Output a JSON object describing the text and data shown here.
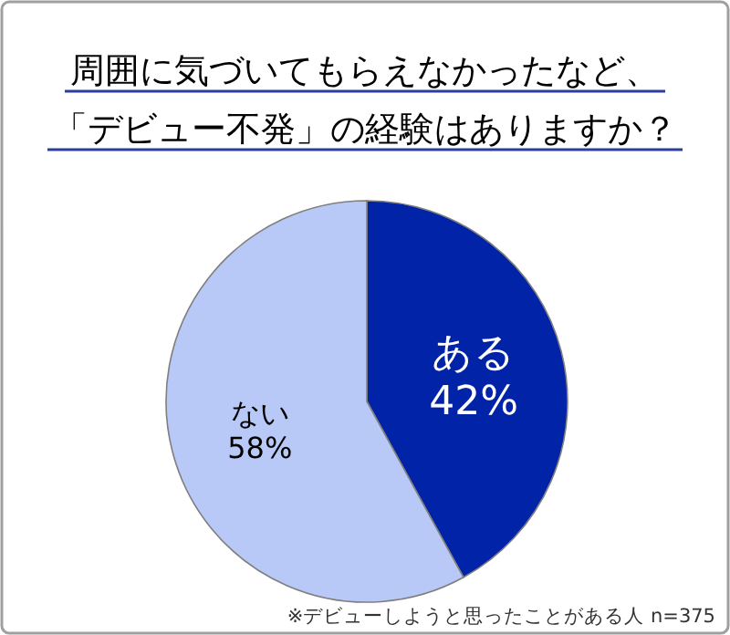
{
  "chart_data": {
    "type": "pie",
    "title": "周囲に気づいてもらえなかったなど、「デビュー不発」の経験はありますか？",
    "categories": [
      "ある",
      "ない"
    ],
    "values": [
      42,
      58
    ],
    "colors": [
      "#0023a8",
      "#b9c9f7"
    ],
    "value_labels": [
      "42%",
      "58%"
    ],
    "annotations": [
      "※デビューしようと思ったことがある人 n=375"
    ]
  }
}
